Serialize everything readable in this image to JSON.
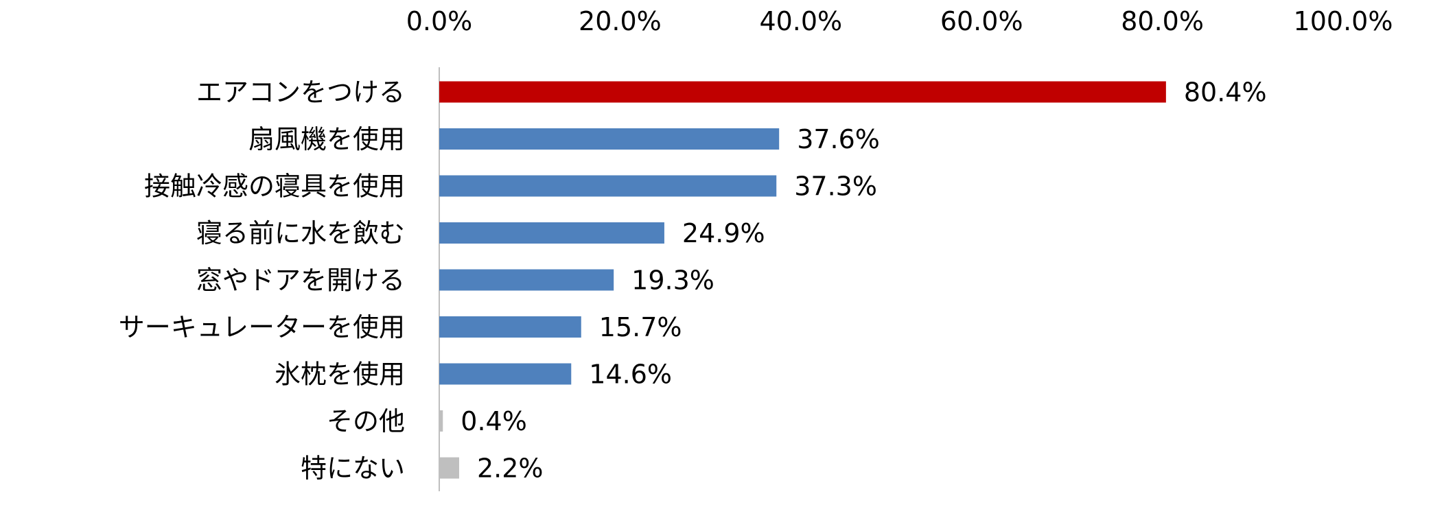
{
  "chart_data": {
    "type": "bar",
    "orientation": "horizontal",
    "categories": [
      "エアコンをつける",
      "扇風機を使用",
      "接触冷感の寝具を使用",
      "寝る前に水を飲む",
      "窓やドアを開ける",
      "サーキュレーターを使用",
      "氷枕を使用",
      "その他",
      "特にない"
    ],
    "values": [
      80.4,
      37.6,
      37.3,
      24.9,
      19.3,
      15.7,
      14.6,
      0.4,
      2.2
    ],
    "value_labels": [
      "80.4%",
      "37.6%",
      "37.3%",
      "24.9%",
      "19.3%",
      "15.7%",
      "14.6%",
      "0.4%",
      "2.2%"
    ],
    "bar_colors": [
      "#c00000",
      "#4f81bd",
      "#4f81bd",
      "#4f81bd",
      "#4f81bd",
      "#4f81bd",
      "#4f81bd",
      "#bfbfbf",
      "#bfbfbf"
    ],
    "xlim": [
      0,
      100
    ],
    "x_ticks": [
      0,
      20,
      40,
      60,
      80,
      100
    ],
    "x_tick_labels": [
      "0.0%",
      "20.0%",
      "40.0%",
      "60.0%",
      "80.0%",
      "100.0%"
    ],
    "axis_position": "top",
    "axis_line_color": "#bfbfbf",
    "title": "",
    "xlabel": "",
    "ylabel": "",
    "grid": false,
    "legend": false
  }
}
